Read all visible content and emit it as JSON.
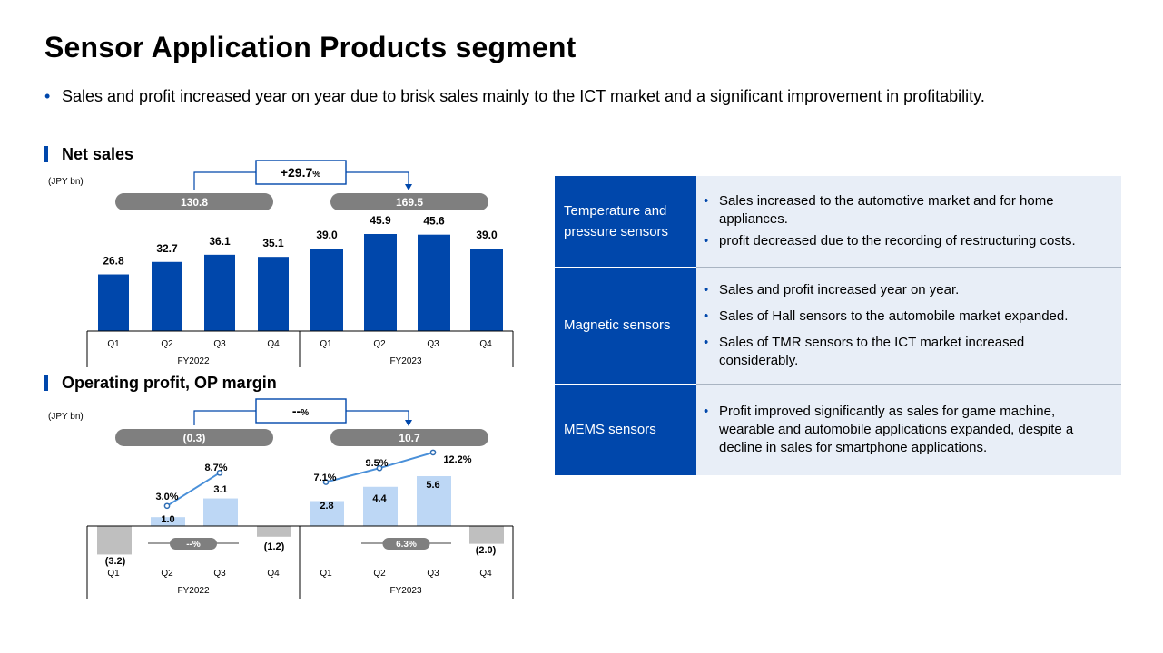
{
  "title": "Sensor Application Products segment",
  "summary": "Sales and profit increased year on year due to brisk sales mainly to the ICT market and a significant improvement in profitability.",
  "colors": {
    "accent": "#0047ab",
    "light_bar": "#bdd7f5",
    "negative_bar": "#bfbfbf",
    "pill": "#7f7f7f",
    "table_bg": "#e8eef7"
  },
  "chart_data": [
    {
      "type": "bar",
      "title": "Net sales",
      "unit": "(JPY bn)",
      "categories": [
        "Q1",
        "Q2",
        "Q3",
        "Q4",
        "Q1",
        "Q2",
        "Q3",
        "Q4"
      ],
      "groups": [
        "FY2022",
        "FY2023"
      ],
      "values": [
        26.8,
        32.7,
        36.1,
        35.1,
        39.0,
        45.9,
        45.6,
        39.0
      ],
      "labels": [
        "26.8",
        "32.7",
        "36.1",
        "35.1",
        "39.0",
        "45.9",
        "45.6",
        "39.0"
      ],
      "totals": [
        "130.8",
        "169.5"
      ],
      "change": "+29.7",
      "change_unit": "%"
    },
    {
      "type": "bar",
      "title": "Operating profit, OP margin",
      "unit": "(JPY bn)",
      "categories": [
        "Q1",
        "Q2",
        "Q3",
        "Q4",
        "Q1",
        "Q2",
        "Q3",
        "Q4"
      ],
      "groups": [
        "FY2022",
        "FY2023"
      ],
      "values": [
        -3.2,
        1.0,
        3.1,
        -1.2,
        2.8,
        4.4,
        5.6,
        -2.0
      ],
      "labels": [
        "(3.2)",
        "1.0",
        "3.1",
        "(1.2)",
        "2.8",
        "4.4",
        "5.6",
        "(2.0)"
      ],
      "totals": [
        "(0.3)",
        "10.7"
      ],
      "change": "--",
      "change_unit": "%",
      "margin_series": {
        "fy2022": {
          "indices": [
            1,
            2
          ],
          "values": [
            3.0,
            8.7
          ],
          "labels": [
            "3.0%",
            "8.7%"
          ]
        },
        "fy2023": {
          "indices": [
            4,
            5,
            6
          ],
          "values": [
            7.1,
            9.5,
            12.2
          ],
          "labels": [
            "7.1%",
            "9.5%",
            "12.2%"
          ]
        }
      },
      "annual_margin": [
        "--%",
        "6.3%"
      ]
    }
  ],
  "table": [
    {
      "head": "Temperature and pressure sensors",
      "bullets": [
        "Sales increased to the automotive market and for home appliances.",
        "profit decreased due to the recording of restructuring costs."
      ]
    },
    {
      "head": "Magnetic sensors",
      "bullets": [
        "Sales and profit increased year on year.",
        "Sales of Hall sensors to the automobile market expanded.",
        "Sales of TMR sensors to the ICT market increased considerably."
      ]
    },
    {
      "head": "MEMS sensors",
      "bullets": [
        "Profit improved significantly as sales for game machine, wearable and automobile applications expanded, despite a decline in sales for smartphone applications."
      ]
    }
  ]
}
